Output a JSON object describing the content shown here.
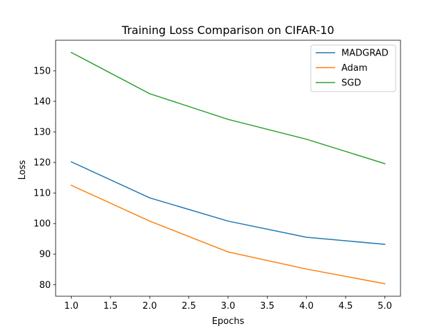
{
  "chart_data": {
    "type": "line",
    "title": "Training Loss Comparison on CIFAR-10",
    "xlabel": "Epochs",
    "ylabel": "Loss",
    "x": [
      1,
      2,
      3,
      4,
      5
    ],
    "xlim": [
      0.8,
      5.2
    ],
    "ylim": [
      76.2,
      160
    ],
    "xticks": [
      1.0,
      1.5,
      2.0,
      2.5,
      3.0,
      3.5,
      4.0,
      4.5,
      5.0
    ],
    "xtick_labels": [
      "1.0",
      "1.5",
      "2.0",
      "2.5",
      "3.0",
      "3.5",
      "4.0",
      "4.5",
      "5.0"
    ],
    "yticks": [
      80,
      90,
      100,
      110,
      120,
      130,
      140,
      150
    ],
    "ytick_labels": [
      "80",
      "90",
      "100",
      "110",
      "120",
      "130",
      "140",
      "150"
    ],
    "grid": false,
    "legend_position": "top-right",
    "series": [
      {
        "name": "MADGRAD",
        "color": "#1f77b4",
        "values": [
          120.2,
          108.4,
          100.8,
          95.5,
          93.2
        ]
      },
      {
        "name": "Adam",
        "color": "#ff7f0e",
        "values": [
          112.5,
          100.8,
          90.7,
          85.1,
          80.3
        ]
      },
      {
        "name": "SGD",
        "color": "#2ca02c",
        "values": [
          156.0,
          142.5,
          134.1,
          127.6,
          119.6
        ]
      }
    ]
  }
}
